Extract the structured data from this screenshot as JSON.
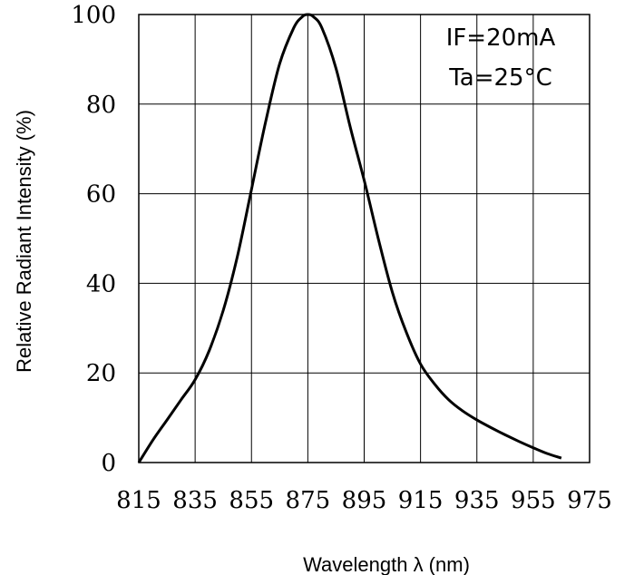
{
  "chart_data": {
    "type": "line",
    "xlabel": "Wavelength  λ  (nm)",
    "ylabel": "Relative Radiant Intensity (%)",
    "xlim": [
      815,
      975
    ],
    "ylim": [
      0,
      100
    ],
    "x_ticks": [
      "815",
      "835",
      "855",
      "875",
      "895",
      "915",
      "935",
      "955",
      "975"
    ],
    "y_ticks": [
      "0",
      "20",
      "40",
      "60",
      "80",
      "100"
    ],
    "grid": true,
    "annotations": [
      "IF=20mA",
      "Ta=25°C"
    ],
    "series": [
      {
        "x": [
          815,
          820,
          825,
          830,
          835,
          840,
          845,
          850,
          855,
          860,
          865,
          870,
          873,
          875,
          877,
          880,
          885,
          890,
          895,
          900,
          905,
          910,
          915,
          920,
          925,
          930,
          935,
          940,
          945,
          950,
          955,
          960,
          965
        ],
        "y": [
          0,
          5,
          9.5,
          14,
          18.5,
          25,
          34,
          46,
          61,
          76,
          89,
          97,
          99.5,
          100,
          99.5,
          97,
          88,
          75,
          63,
          50,
          38,
          29,
          22,
          17.5,
          14,
          11.5,
          9.5,
          7.8,
          6.2,
          4.7,
          3.3,
          2,
          1
        ]
      }
    ]
  }
}
